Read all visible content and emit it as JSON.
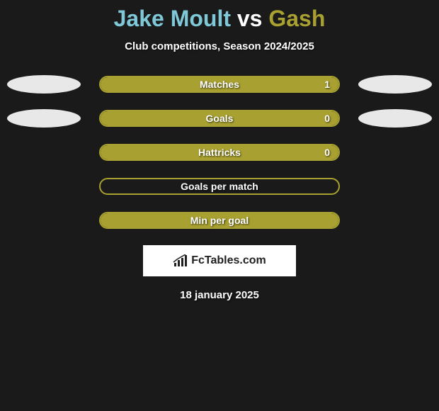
{
  "title": {
    "player1": "Jake Moult",
    "vs": "vs",
    "player2": "Gash",
    "player1_color": "#7fc8d8",
    "vs_color": "#ffffff",
    "player2_color": "#a8a030"
  },
  "subtitle": "Club competitions, Season 2024/2025",
  "accent_color": "#a8a030",
  "ellipse_color": "#e8e8e8",
  "background_color": "#1a1a1a",
  "bars": [
    {
      "label": "Matches",
      "value": "1",
      "fill_pct": 100,
      "show_value": true,
      "show_ellipses": true
    },
    {
      "label": "Goals",
      "value": "0",
      "fill_pct": 100,
      "show_value": true,
      "show_ellipses": true
    },
    {
      "label": "Hattricks",
      "value": "0",
      "fill_pct": 100,
      "show_value": true,
      "show_ellipses": false
    },
    {
      "label": "Goals per match",
      "value": "",
      "fill_pct": 0,
      "show_value": false,
      "show_ellipses": false
    },
    {
      "label": "Min per goal",
      "value": "",
      "fill_pct": 100,
      "show_value": false,
      "show_ellipses": false
    }
  ],
  "logo_text": "FcTables.com",
  "date": "18 january 2025"
}
